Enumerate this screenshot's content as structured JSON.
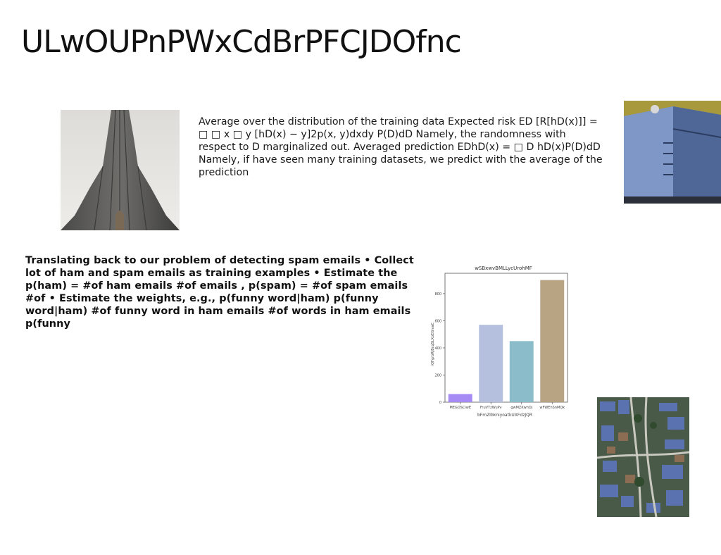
{
  "title": "ULwOUPnPWxCdBrPFCJDOfnc",
  "blocks": {
    "text_1": "Average over the distribution of the training data Expected risk ED [R[hD(x)]] = □ □ x □ y [hD(x) − y]2p(x, y)dxdy P(D)dD Namely, the randomness with respect to D marginalized out. Averaged prediction EDhD(x) = □ D hD(x)P(D)dD Namely, if have seen many training datasets, we predict with the average of the prediction",
    "text_2": "Translating back to our problem of detecting spam emails • Collect lot of ham and spam emails as training examples • Estimate the p(ham) = #of ham emails #of emails , p(spam) = #of spam emails #of • Estimate the weights, e.g., p(funny word|ham) p(funny word|ham) #of funny word in ham emails #of words in ham emails p(funny"
  },
  "chart_data": {
    "type": "bar",
    "title": "wSBxwvBMLLycUrohMF",
    "xlabel": "bFmZIbkniyoatkUXFdzJQR",
    "ylabel": "rQFgrbRJBcqSLXoEGivaC",
    "categories": [
      "MEGOSCiwE",
      "FruVTzWuPv",
      "gwMZKwhDj",
      "wFWEhSnMQk"
    ],
    "values": [
      60,
      570,
      450,
      900
    ],
    "colors": [
      "#a78bf5",
      "#b4c0dd",
      "#8bbcc9",
      "#b8a382"
    ],
    "ylim": [
      0,
      950
    ],
    "yticks": [
      0,
      200,
      400,
      600,
      800
    ],
    "grid": false
  }
}
